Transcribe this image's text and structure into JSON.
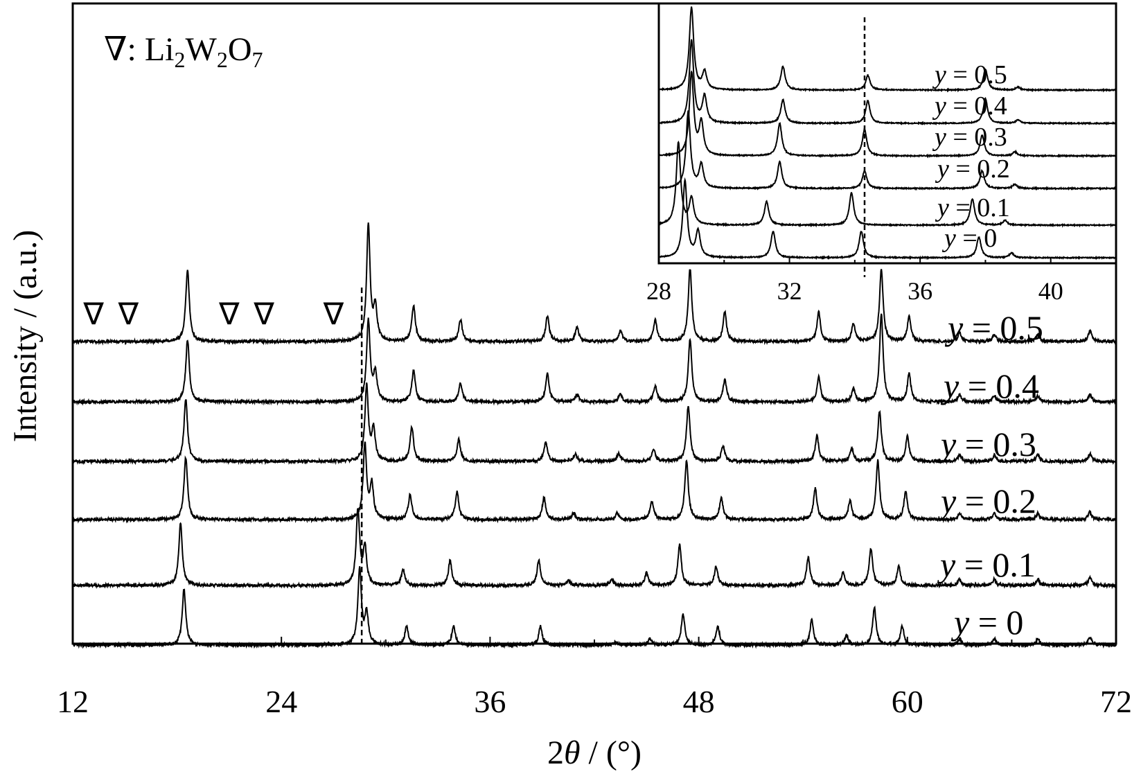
{
  "chart_data": [
    {
      "type": "line",
      "xlabel_prefix": "2",
      "xlabel_theta": "θ",
      "xlabel_suffix": " / (°)",
      "ylabel": "Intensity / (a.u.)",
      "xlim": [
        12,
        72
      ],
      "x_ticks": [
        "12",
        "24",
        "36",
        "48",
        "60",
        "72"
      ],
      "legend": {
        "symbol": "∇",
        "sep": ": ",
        "compound": [
          "Li",
          "2",
          "W",
          "2",
          "O",
          "7"
        ]
      },
      "marker_symbol": "∇",
      "marker_positions": [
        13.2,
        15.2,
        21.0,
        23.0,
        27.0
      ],
      "series": [
        {
          "name": "y = 0.5",
          "label_var": "y",
          "label_rest": " = 0.5",
          "peaks": [
            [
              18.6,
              1.0
            ],
            [
              29.0,
              1.6
            ],
            [
              29.4,
              0.45
            ],
            [
              31.6,
              0.5
            ],
            [
              34.3,
              0.3
            ],
            [
              39.3,
              0.35
            ],
            [
              41.0,
              0.2
            ],
            [
              43.5,
              0.15
            ],
            [
              45.5,
              0.3
            ],
            [
              47.5,
              1.0
            ],
            [
              49.5,
              0.4
            ],
            [
              54.9,
              0.4
            ],
            [
              56.9,
              0.25
            ],
            [
              58.5,
              1.0
            ],
            [
              60.1,
              0.35
            ],
            [
              63.0,
              0.12
            ],
            [
              65.0,
              0.1
            ],
            [
              67.5,
              0.1
            ],
            [
              70.5,
              0.15
            ]
          ]
        },
        {
          "name": "y = 0.4",
          "label_var": "y",
          "label_rest": " = 0.4",
          "peaks": [
            [
              18.6,
              1.0
            ],
            [
              29.0,
              1.3
            ],
            [
              29.4,
              0.45
            ],
            [
              31.6,
              0.5
            ],
            [
              34.3,
              0.3
            ],
            [
              39.3,
              0.45
            ],
            [
              41.0,
              0.12
            ],
            [
              43.5,
              0.12
            ],
            [
              45.5,
              0.25
            ],
            [
              47.5,
              1.0
            ],
            [
              49.5,
              0.35
            ],
            [
              54.9,
              0.4
            ],
            [
              56.9,
              0.2
            ],
            [
              58.5,
              1.4
            ],
            [
              60.1,
              0.45
            ],
            [
              63.0,
              0.12
            ],
            [
              65.0,
              0.1
            ],
            [
              67.5,
              0.1
            ],
            [
              70.5,
              0.12
            ]
          ]
        },
        {
          "name": "y = 0.3",
          "label_var": "y",
          "label_rest": " = 0.3",
          "peaks": [
            [
              18.5,
              1.0
            ],
            [
              28.9,
              1.2
            ],
            [
              29.3,
              0.5
            ],
            [
              31.5,
              0.55
            ],
            [
              34.2,
              0.35
            ],
            [
              39.2,
              0.3
            ],
            [
              40.9,
              0.12
            ],
            [
              43.4,
              0.12
            ],
            [
              45.4,
              0.2
            ],
            [
              47.4,
              0.9
            ],
            [
              49.4,
              0.25
            ],
            [
              54.8,
              0.4
            ],
            [
              56.8,
              0.2
            ],
            [
              58.4,
              0.8
            ],
            [
              60.0,
              0.4
            ],
            [
              63.0,
              0.1
            ],
            [
              65.0,
              0.1
            ],
            [
              67.5,
              0.1
            ],
            [
              70.5,
              0.12
            ]
          ]
        },
        {
          "name": "y = 0.2",
          "label_var": "y",
          "label_rest": " = 0.2",
          "peaks": [
            [
              18.5,
              1.0
            ],
            [
              28.8,
              1.2
            ],
            [
              29.2,
              0.55
            ],
            [
              31.4,
              0.4
            ],
            [
              34.1,
              0.45
            ],
            [
              39.1,
              0.35
            ],
            [
              40.8,
              0.1
            ],
            [
              43.3,
              0.1
            ],
            [
              45.3,
              0.3
            ],
            [
              47.3,
              0.95
            ],
            [
              49.3,
              0.35
            ],
            [
              54.7,
              0.5
            ],
            [
              56.7,
              0.3
            ],
            [
              58.3,
              0.95
            ],
            [
              59.9,
              0.45
            ],
            [
              63.0,
              0.1
            ],
            [
              65.0,
              0.1
            ],
            [
              67.5,
              0.1
            ],
            [
              70.5,
              0.12
            ]
          ]
        },
        {
          "name": "y = 0.1",
          "label_var": "y",
          "label_rest": " = 0.1",
          "peaks": [
            [
              18.2,
              1.0
            ],
            [
              28.4,
              1.2
            ],
            [
              28.8,
              0.6
            ],
            [
              31.0,
              0.25
            ],
            [
              33.7,
              0.4
            ],
            [
              38.8,
              0.4
            ],
            [
              40.5,
              0.08
            ],
            [
              43.0,
              0.1
            ],
            [
              45.0,
              0.2
            ],
            [
              46.9,
              0.65
            ],
            [
              49.0,
              0.3
            ],
            [
              54.3,
              0.45
            ],
            [
              56.3,
              0.2
            ],
            [
              57.9,
              0.6
            ],
            [
              59.5,
              0.3
            ],
            [
              63.0,
              0.1
            ],
            [
              65.0,
              0.1
            ],
            [
              67.5,
              0.1
            ],
            [
              70.5,
              0.12
            ]
          ]
        },
        {
          "name": "y = 0",
          "label_var": "y",
          "label_rest": " = 0",
          "peaks": [
            [
              18.4,
              0.9
            ],
            [
              28.5,
              1.2
            ],
            [
              28.9,
              0.5
            ],
            [
              31.2,
              0.3
            ],
            [
              33.9,
              0.3
            ],
            [
              38.9,
              0.3
            ],
            [
              43.2,
              0.05
            ],
            [
              45.2,
              0.1
            ],
            [
              47.1,
              0.5
            ],
            [
              49.1,
              0.3
            ],
            [
              54.5,
              0.4
            ],
            [
              56.5,
              0.15
            ],
            [
              58.1,
              0.6
            ],
            [
              59.7,
              0.3
            ],
            [
              63.0,
              0.1
            ],
            [
              65.0,
              0.1
            ],
            [
              67.5,
              0.1
            ],
            [
              70.5,
              0.12
            ]
          ]
        }
      ],
      "reference_line_x": 28.5
    },
    {
      "type": "line",
      "role": "inset",
      "xlim": [
        28,
        42
      ],
      "x_ticks": [
        "28",
        "32",
        "36",
        "40"
      ],
      "series": [
        {
          "name": "y = 0.5",
          "label_var": "y",
          "label_rest": " = 0.5",
          "peaks": [
            [
              29.0,
              1.4
            ],
            [
              29.4,
              0.3
            ],
            [
              31.8,
              0.4
            ],
            [
              34.4,
              0.25
            ],
            [
              38.0,
              0.35
            ],
            [
              39.0,
              0.05
            ]
          ]
        },
        {
          "name": "y = 0.4",
          "label_var": "y",
          "label_rest": " = 0.4",
          "peaks": [
            [
              29.0,
              1.4
            ],
            [
              29.4,
              0.45
            ],
            [
              31.8,
              0.4
            ],
            [
              34.4,
              0.38
            ],
            [
              38.0,
              0.42
            ],
            [
              39.0,
              0.06
            ]
          ]
        },
        {
          "name": "y = 0.3",
          "label_var": "y",
          "label_rest": " = 0.3",
          "peaks": [
            [
              29.0,
              1.4
            ],
            [
              29.3,
              0.55
            ],
            [
              31.7,
              0.55
            ],
            [
              34.3,
              0.45
            ],
            [
              37.9,
              0.35
            ],
            [
              38.9,
              0.07
            ]
          ]
        },
        {
          "name": "y = 0.2",
          "label_var": "y",
          "label_rest": " = 0.2",
          "peaks": [
            [
              28.9,
              1.3
            ],
            [
              29.3,
              0.4
            ],
            [
              31.7,
              0.45
            ],
            [
              34.3,
              0.3
            ],
            [
              37.9,
              0.3
            ],
            [
              38.9,
              0.07
            ]
          ]
        },
        {
          "name": "y = 0.1",
          "label_var": "y",
          "label_rest": " = 0.1",
          "peaks": [
            [
              28.6,
              1.4
            ],
            [
              29.0,
              0.45
            ],
            [
              31.3,
              0.4
            ],
            [
              33.9,
              0.55
            ],
            [
              37.6,
              0.45
            ],
            [
              38.6,
              0.08
            ]
          ]
        },
        {
          "name": "y = 0",
          "label_var": "y",
          "label_rest": " = 0",
          "peaks": [
            [
              28.8,
              1.3
            ],
            [
              29.2,
              0.45
            ],
            [
              31.5,
              0.45
            ],
            [
              34.2,
              0.45
            ],
            [
              37.8,
              0.35
            ],
            [
              38.8,
              0.08
            ]
          ]
        }
      ],
      "reference_line_x": 34.3
    }
  ]
}
